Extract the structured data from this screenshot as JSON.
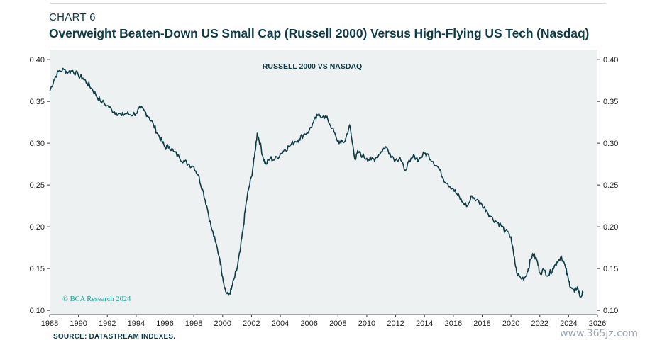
{
  "header": {
    "chart_number": "CHART 6",
    "title": "Overweight Beaten-Down US Small Cap (Russell 2000) Versus High-Flying US Tech (Nasdaq)"
  },
  "footer": {
    "source": "SOURCE: DATASTREAM INDEXES.",
    "copyright": "© BCA Research 2024",
    "watermark": "www.365jz.com"
  },
  "colors": {
    "line": "#0e3b45",
    "panel": "#eef1f2",
    "copyright": "#1aa39a"
  },
  "chart_data": {
    "type": "line",
    "title": "RUSSELL 2000 VS NASDAQ",
    "xlabel": "",
    "ylabel": "",
    "xlim": [
      1988,
      2026
    ],
    "ylim": [
      0.095,
      0.412
    ],
    "x_ticks": [
      "1988",
      "1990",
      "1992",
      "1994",
      "1996",
      "1998",
      "2000",
      "2002",
      "2004",
      "2006",
      "2008",
      "2010",
      "2012",
      "2014",
      "2016",
      "2018",
      "2020",
      "2022",
      "2024",
      "2026"
    ],
    "y_ticks": [
      "0.10",
      "0.15",
      "0.20",
      "0.25",
      "0.30",
      "0.35",
      "0.40"
    ],
    "grid": false,
    "series": [
      {
        "name": "Russell 2000 vs Nasdaq",
        "x": [
          1988.0,
          1988.3,
          1988.6,
          1989.0,
          1989.3,
          1989.6,
          1990.0,
          1990.3,
          1990.6,
          1990.9,
          1991.2,
          1991.5,
          1992.0,
          1992.3,
          1992.6,
          1993.0,
          1993.3,
          1993.6,
          1994.0,
          1994.3,
          1994.6,
          1994.9,
          1995.2,
          1995.5,
          1995.8,
          1996.0,
          1996.3,
          1996.6,
          1997.0,
          1997.3,
          1997.6,
          1998.0,
          1998.3,
          1998.6,
          1998.9,
          1999.2,
          1999.5,
          1999.8,
          2000.0,
          2000.2,
          2000.4,
          2000.6,
          2000.8,
          2001.0,
          2001.2,
          2001.4,
          2001.6,
          2001.8,
          2002.0,
          2002.2,
          2002.4,
          2002.6,
          2002.8,
          2003.0,
          2003.3,
          2003.6,
          2004.0,
          2004.3,
          2004.6,
          2005.0,
          2005.3,
          2005.6,
          2006.0,
          2006.3,
          2006.6,
          2007.0,
          2007.3,
          2007.6,
          2007.9,
          2008.2,
          2008.5,
          2008.8,
          2009.0,
          2009.2,
          2009.4,
          2009.7,
          2010.0,
          2010.3,
          2010.6,
          2011.0,
          2011.3,
          2011.6,
          2012.0,
          2012.3,
          2012.6,
          2013.0,
          2013.3,
          2013.6,
          2014.0,
          2014.3,
          2014.6,
          2015.0,
          2015.3,
          2015.6,
          2016.0,
          2016.3,
          2016.6,
          2017.0,
          2017.3,
          2017.6,
          2018.0,
          2018.3,
          2018.6,
          2019.0,
          2019.3,
          2019.6,
          2020.0,
          2020.2,
          2020.4,
          2020.7,
          2021.0,
          2021.2,
          2021.5,
          2021.8,
          2022.0,
          2022.3,
          2022.6,
          2022.9,
          2023.2,
          2023.5,
          2023.8,
          2024.0,
          2024.2,
          2024.4,
          2024.6,
          2024.8,
          2025.0
        ],
        "values": [
          0.362,
          0.376,
          0.386,
          0.388,
          0.385,
          0.387,
          0.381,
          0.378,
          0.372,
          0.366,
          0.358,
          0.351,
          0.345,
          0.34,
          0.337,
          0.333,
          0.336,
          0.334,
          0.336,
          0.342,
          0.338,
          0.331,
          0.322,
          0.311,
          0.302,
          0.295,
          0.296,
          0.29,
          0.283,
          0.279,
          0.275,
          0.272,
          0.262,
          0.245,
          0.225,
          0.2,
          0.182,
          0.162,
          0.14,
          0.123,
          0.118,
          0.125,
          0.138,
          0.15,
          0.17,
          0.195,
          0.225,
          0.245,
          0.26,
          0.283,
          0.312,
          0.3,
          0.283,
          0.275,
          0.282,
          0.28,
          0.287,
          0.292,
          0.296,
          0.302,
          0.305,
          0.31,
          0.315,
          0.325,
          0.333,
          0.333,
          0.328,
          0.318,
          0.305,
          0.3,
          0.303,
          0.322,
          0.3,
          0.28,
          0.29,
          0.285,
          0.282,
          0.28,
          0.282,
          0.29,
          0.296,
          0.288,
          0.28,
          0.283,
          0.268,
          0.278,
          0.285,
          0.28,
          0.288,
          0.285,
          0.278,
          0.27,
          0.258,
          0.252,
          0.245,
          0.238,
          0.23,
          0.225,
          0.237,
          0.232,
          0.226,
          0.22,
          0.212,
          0.206,
          0.202,
          0.195,
          0.188,
          0.165,
          0.145,
          0.138,
          0.14,
          0.15,
          0.168,
          0.16,
          0.145,
          0.148,
          0.142,
          0.15,
          0.158,
          0.165,
          0.15,
          0.135,
          0.127,
          0.122,
          0.128,
          0.116,
          0.121
        ]
      }
    ]
  }
}
